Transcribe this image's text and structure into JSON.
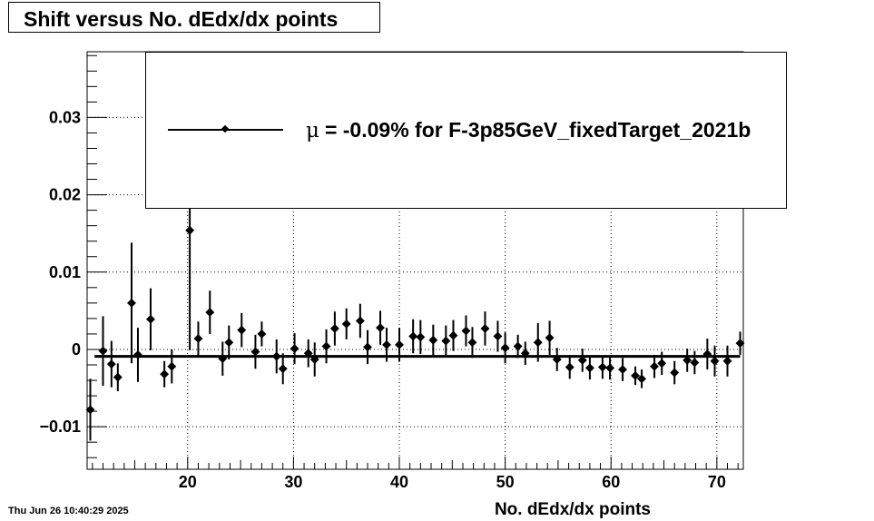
{
  "title": "Shift versus No. dEdx/dx points",
  "footer_timestamp": "Thu Jun 26 10:40:29 2025",
  "legend": {
    "symbol": "μ",
    "text": "= -0.09% for F-3p85GeV_fixedTarget_2021b"
  },
  "chart_data": {
    "type": "scatter",
    "title": "Shift versus No. dEdx/dx points",
    "xlabel": "No. dEdx/dx points",
    "ylabel": "",
    "xlim": [
      10.5,
      72.5
    ],
    "ylim": [
      -0.0155,
      0.0385
    ],
    "x_ticks": [
      20,
      30,
      40,
      50,
      60,
      70
    ],
    "x_tick_labels": [
      "20",
      "30",
      "40",
      "50",
      "60",
      "70"
    ],
    "y_ticks": [
      -0.01,
      0,
      0.01,
      0.02,
      0.03
    ],
    "y_tick_labels": [
      "−0.01",
      "0",
      "0.01",
      "0.02",
      "0.03"
    ],
    "grid": true,
    "fit_value": -0.0009,
    "points": [
      {
        "x": 10.8,
        "y": -0.0078,
        "err": 0.004
      },
      {
        "x": 12.0,
        "y": -0.0002,
        "err": 0.0045
      },
      {
        "x": 12.8,
        "y": -0.0019,
        "err": 0.003
      },
      {
        "x": 13.4,
        "y": -0.0036,
        "err": 0.0018
      },
      {
        "x": 14.7,
        "y": 0.006,
        "err": 0.0078
      },
      {
        "x": 15.3,
        "y": -0.0007,
        "err": 0.0035
      },
      {
        "x": 16.5,
        "y": 0.0039,
        "err": 0.004
      },
      {
        "x": 17.8,
        "y": -0.0032,
        "err": 0.0017
      },
      {
        "x": 18.5,
        "y": -0.0022,
        "err": 0.0022
      },
      {
        "x": 20.2,
        "y": 0.0154,
        "err": 0.0155
      },
      {
        "x": 21.0,
        "y": 0.0014,
        "err": 0.0022
      },
      {
        "x": 22.1,
        "y": 0.0048,
        "err": 0.0028
      },
      {
        "x": 23.3,
        "y": -0.0012,
        "err": 0.0022
      },
      {
        "x": 23.9,
        "y": 0.0009,
        "err": 0.0022
      },
      {
        "x": 25.1,
        "y": 0.0025,
        "err": 0.0022
      },
      {
        "x": 26.4,
        "y": -0.0003,
        "err": 0.0022
      },
      {
        "x": 27.0,
        "y": 0.002,
        "err": 0.0016
      },
      {
        "x": 28.4,
        "y": -0.0009,
        "err": 0.0022
      },
      {
        "x": 29.0,
        "y": -0.0025,
        "err": 0.002
      },
      {
        "x": 30.1,
        "y": 0.0001,
        "err": 0.002
      },
      {
        "x": 31.4,
        "y": -0.0005,
        "err": 0.0018
      },
      {
        "x": 32.0,
        "y": -0.0013,
        "err": 0.0022
      },
      {
        "x": 33.1,
        "y": 0.0004,
        "err": 0.0022
      },
      {
        "x": 33.9,
        "y": 0.0027,
        "err": 0.0022
      },
      {
        "x": 35.0,
        "y": 0.0033,
        "err": 0.002
      },
      {
        "x": 36.3,
        "y": 0.0037,
        "err": 0.0022
      },
      {
        "x": 37.0,
        "y": 0.0003,
        "err": 0.0022
      },
      {
        "x": 38.2,
        "y": 0.0028,
        "err": 0.0022
      },
      {
        "x": 38.8,
        "y": 0.0006,
        "err": 0.0022
      },
      {
        "x": 40.0,
        "y": 0.0006,
        "err": 0.0022
      },
      {
        "x": 41.3,
        "y": 0.0017,
        "err": 0.0022
      },
      {
        "x": 42.0,
        "y": 0.0016,
        "err": 0.0022
      },
      {
        "x": 43.2,
        "y": 0.0012,
        "err": 0.002
      },
      {
        "x": 44.4,
        "y": 0.0011,
        "err": 0.002
      },
      {
        "x": 45.1,
        "y": 0.0018,
        "err": 0.002
      },
      {
        "x": 46.3,
        "y": 0.0024,
        "err": 0.002
      },
      {
        "x": 46.9,
        "y": 0.0009,
        "err": 0.002
      },
      {
        "x": 48.1,
        "y": 0.0027,
        "err": 0.0022
      },
      {
        "x": 49.3,
        "y": 0.0017,
        "err": 0.002
      },
      {
        "x": 50.0,
        "y": 0.0002,
        "err": 0.002
      },
      {
        "x": 51.2,
        "y": 0.0004,
        "err": 0.0015
      },
      {
        "x": 51.9,
        "y": -0.0005,
        "err": 0.0015
      },
      {
        "x": 53.1,
        "y": 0.0009,
        "err": 0.0025
      },
      {
        "x": 54.2,
        "y": 0.0015,
        "err": 0.0022
      },
      {
        "x": 54.9,
        "y": -0.0013,
        "err": 0.0015
      },
      {
        "x": 56.1,
        "y": -0.0023,
        "err": 0.0015
      },
      {
        "x": 57.3,
        "y": -0.0014,
        "err": 0.0015
      },
      {
        "x": 58.0,
        "y": -0.0024,
        "err": 0.0015
      },
      {
        "x": 59.2,
        "y": -0.0023,
        "err": 0.0015
      },
      {
        "x": 59.9,
        "y": -0.0024,
        "err": 0.0015
      },
      {
        "x": 61.1,
        "y": -0.0026,
        "err": 0.0015
      },
      {
        "x": 62.3,
        "y": -0.0034,
        "err": 0.0012
      },
      {
        "x": 62.9,
        "y": -0.0038,
        "err": 0.0012
      },
      {
        "x": 64.1,
        "y": -0.0022,
        "err": 0.0015
      },
      {
        "x": 64.8,
        "y": -0.0018,
        "err": 0.0015
      },
      {
        "x": 66.0,
        "y": -0.003,
        "err": 0.0015
      },
      {
        "x": 67.2,
        "y": -0.0014,
        "err": 0.0015
      },
      {
        "x": 67.9,
        "y": -0.0017,
        "err": 0.0015
      },
      {
        "x": 69.1,
        "y": -0.0006,
        "err": 0.002
      },
      {
        "x": 69.8,
        "y": -0.0015,
        "err": 0.002
      },
      {
        "x": 71.0,
        "y": -0.0015,
        "err": 0.002
      },
      {
        "x": 72.2,
        "y": 0.0008,
        "err": 0.0015
      }
    ]
  }
}
